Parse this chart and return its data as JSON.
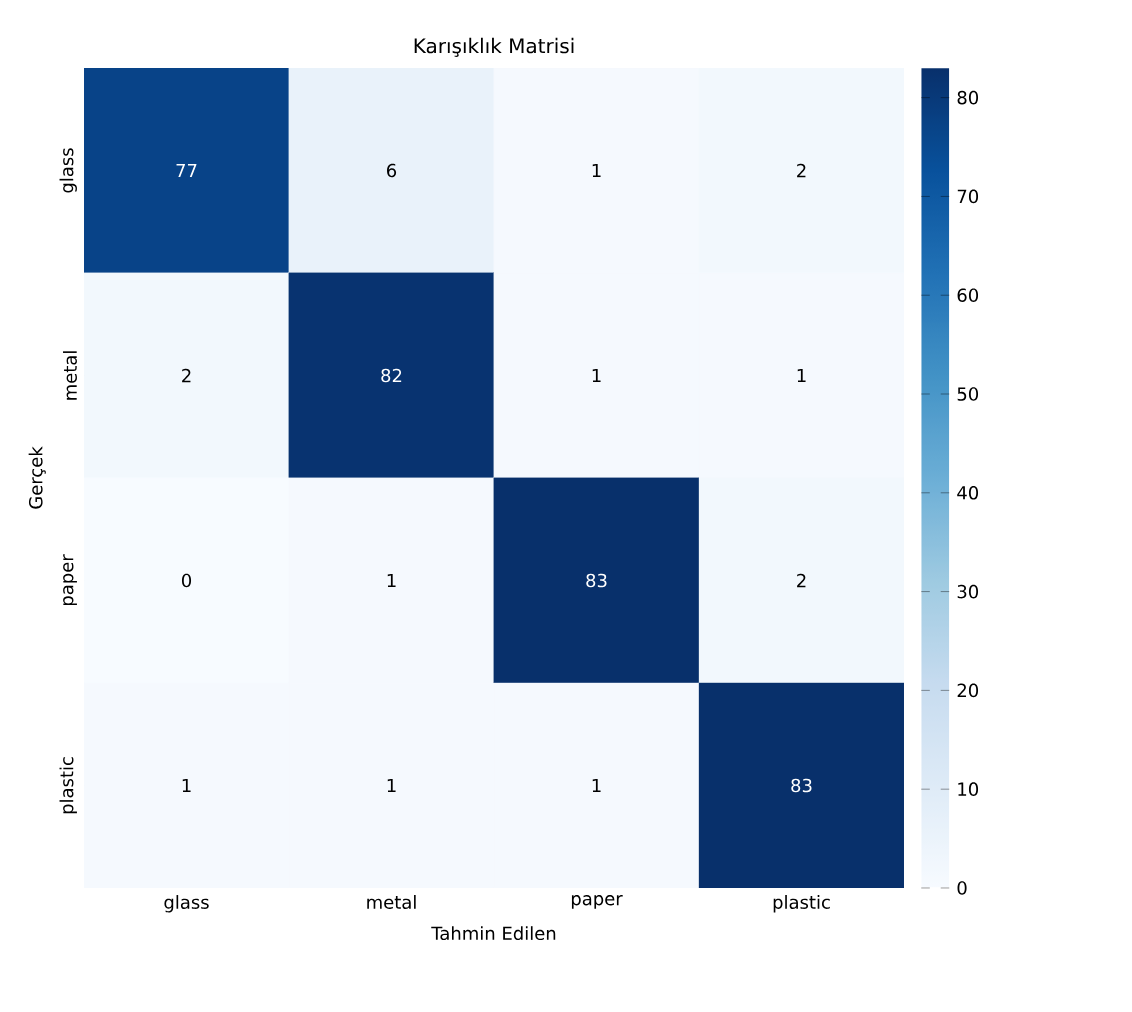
{
  "chart_data": {
    "type": "heatmap",
    "title": "Karışıklık Matrisi",
    "xlabel": "Tahmin Edilen",
    "ylabel": "Gerçek",
    "categories": [
      "glass",
      "metal",
      "paper",
      "plastic"
    ],
    "y_categories": [
      "glass",
      "metal",
      "paper",
      "plastic"
    ],
    "cells": [
      [
        77,
        6,
        1,
        2
      ],
      [
        2,
        82,
        1,
        1
      ],
      [
        0,
        1,
        83,
        2
      ],
      [
        1,
        1,
        1,
        83
      ]
    ],
    "data_labels": true,
    "clim": [
      0,
      83
    ],
    "cticks": [
      0,
      10,
      20,
      30,
      40,
      50,
      60,
      70,
      80
    ]
  }
}
